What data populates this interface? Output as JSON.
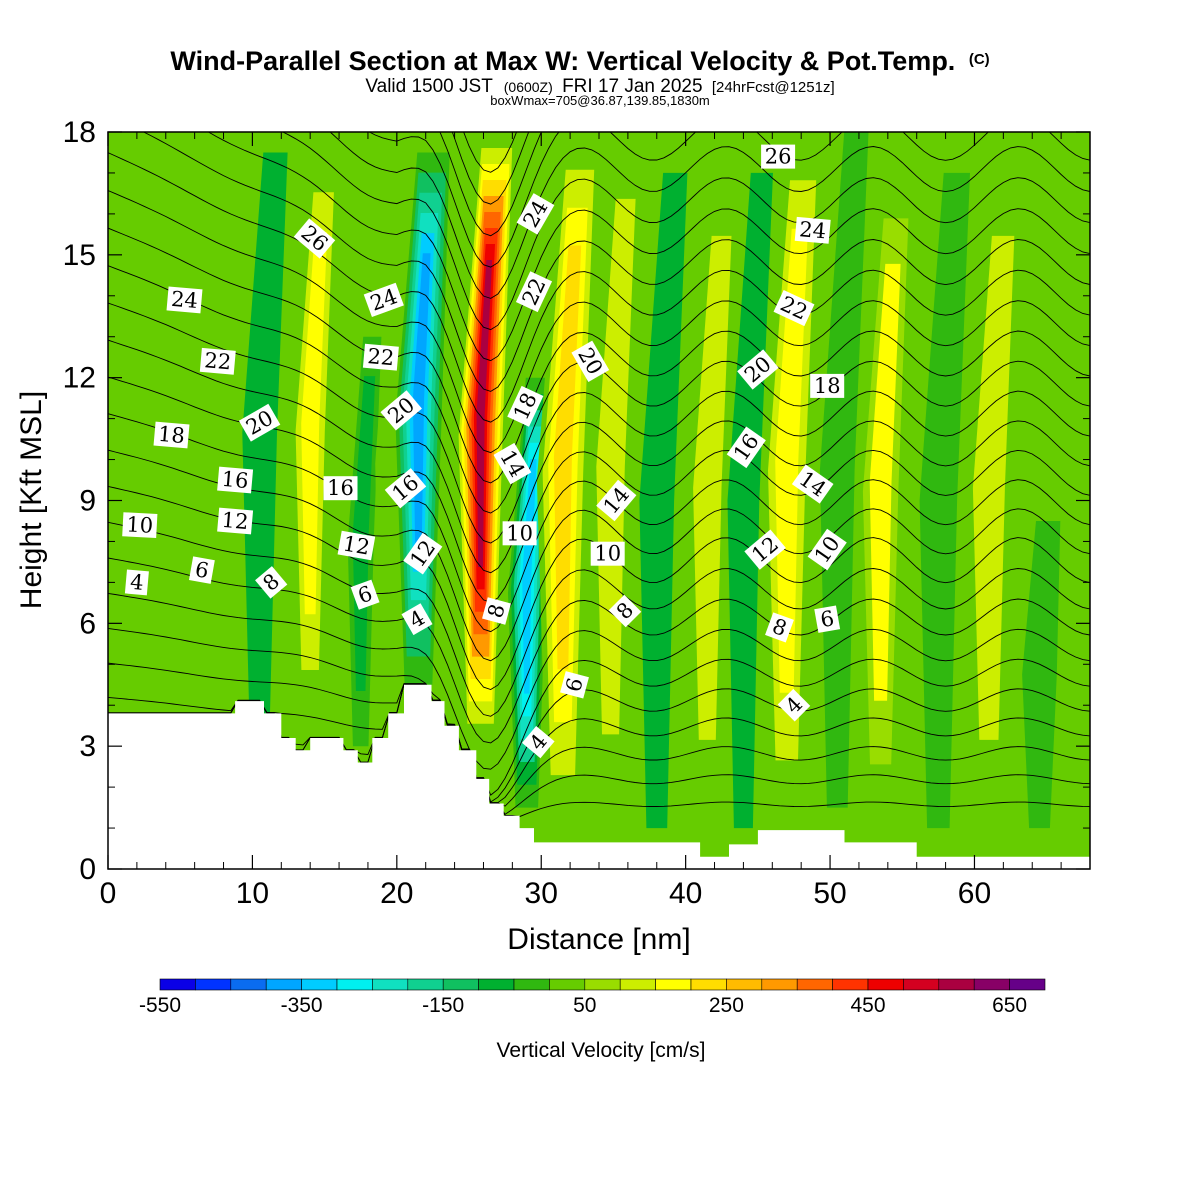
{
  "chart_data": {
    "type": "heatmap",
    "title": "Wind-Parallel Section at Max W: Vertical Velocity & Pot.Temp.",
    "title_mark": "(C)",
    "subtitle_main": "Valid 1500 JST",
    "subtitle_z": "(0600Z)",
    "subtitle_date": "FRI 17 Jan 2025",
    "subtitle_fcst": "[24hrFcst@1251z]",
    "subtitle2": "boxWmax=705@36.87,139.85,1830m",
    "xlabel": "Distance [nm]",
    "ylabel": "Height [Kft MSL]",
    "xlim": [
      0,
      68
    ],
    "ylim": [
      0,
      18
    ],
    "x_ticks": [
      "0",
      "10",
      "20",
      "30",
      "40",
      "50",
      "60"
    ],
    "y_ticks": [
      "0",
      "3",
      "6",
      "9",
      "12",
      "15",
      "18"
    ],
    "colorbar": {
      "label": "Vertical Velocity [cm/s]",
      "tick_labels": [
        "-550",
        "-350",
        "-150",
        "50",
        "250",
        "450",
        "650"
      ],
      "colors": [
        "#0a00e6",
        "#0033ff",
        "#0a6cf0",
        "#00a6ff",
        "#00ccff",
        "#00f0f0",
        "#10e0c0",
        "#10d090",
        "#10c060",
        "#00b030",
        "#30b810",
        "#66cc00",
        "#99dd00",
        "#ccee00",
        "#ffff00",
        "#ffdd00",
        "#ffbb00",
        "#ff9900",
        "#ff6600",
        "#ff3300",
        "#ee0000",
        "#d40020",
        "#aa0040",
        "#880066",
        "#660088"
      ]
    },
    "colors": {
      "background_field": "#66cc00"
    },
    "terrain": [
      [
        0,
        3.8
      ],
      [
        8.8,
        3.8
      ],
      [
        8.8,
        4.1
      ],
      [
        10.8,
        4.1
      ],
      [
        10.8,
        3.8
      ],
      [
        12,
        3.8
      ],
      [
        12,
        3.2
      ],
      [
        13,
        3.2
      ],
      [
        13,
        2.9
      ],
      [
        14,
        2.9
      ],
      [
        14,
        3.2
      ],
      [
        16.3,
        3.2
      ],
      [
        16.3,
        2.9
      ],
      [
        17.3,
        2.9
      ],
      [
        17.3,
        2.6
      ],
      [
        18.3,
        2.6
      ],
      [
        18.3,
        3.2
      ],
      [
        19.4,
        3.2
      ],
      [
        19.4,
        3.8
      ],
      [
        20.5,
        3.8
      ],
      [
        20.5,
        4.5
      ],
      [
        22.4,
        4.5
      ],
      [
        22.4,
        4.1
      ],
      [
        23.3,
        4.1
      ],
      [
        23.3,
        3.5
      ],
      [
        24.3,
        3.5
      ],
      [
        24.3,
        2.9
      ],
      [
        25.5,
        2.9
      ],
      [
        25.5,
        2.2
      ],
      [
        26.4,
        2.2
      ],
      [
        26.4,
        1.6
      ],
      [
        27.4,
        1.6
      ],
      [
        27.4,
        1.3
      ],
      [
        28.5,
        1.3
      ],
      [
        28.5,
        1.0
      ],
      [
        29.5,
        1.0
      ],
      [
        29.5,
        0.65
      ],
      [
        41,
        0.65
      ],
      [
        41,
        0.3
      ],
      [
        43,
        0.3
      ],
      [
        43,
        0.6
      ],
      [
        45,
        0.6
      ],
      [
        45,
        0.95
      ],
      [
        51,
        0.95
      ],
      [
        51,
        0.65
      ],
      [
        56,
        0.65
      ],
      [
        56,
        0.3
      ],
      [
        68,
        0.3
      ]
    ],
    "w_features": [
      {
        "x": 10.5,
        "z0": 3.8,
        "z1": 17.5,
        "w": -60,
        "width": 1.2
      },
      {
        "x": 14.0,
        "z0": 3.5,
        "z1": 17.5,
        "w": 180,
        "width": 1.4
      },
      {
        "x": 17.5,
        "z0": 3.0,
        "z1": 13.0,
        "w": -90,
        "width": 0.9
      },
      {
        "x": 19.5,
        "z0": 3.8,
        "z1": 16.0,
        "w": 40,
        "width": 1.0
      },
      {
        "x": 21.5,
        "z0": 4.5,
        "z1": 17.5,
        "w": -380,
        "width": 1.6
      },
      {
        "x": 25.8,
        "z0": 3.0,
        "z1": 18.0,
        "w": 560,
        "width": 1.7
      },
      {
        "x": 29.0,
        "z0": 1.5,
        "z1": 12.0,
        "w": -330,
        "width": 1.3
      },
      {
        "x": 31.5,
        "z0": 1.0,
        "z1": 18.0,
        "w": 230,
        "width": 1.8
      },
      {
        "x": 34.8,
        "z0": 1.0,
        "z1": 18.0,
        "w": 140,
        "width": 1.6
      },
      {
        "x": 38.0,
        "z0": 1.0,
        "z1": 17.0,
        "w": -60,
        "width": 1.2
      },
      {
        "x": 41.5,
        "z0": 1.0,
        "z1": 17.0,
        "w": 140,
        "width": 1.6
      },
      {
        "x": 44.0,
        "z0": 1.0,
        "z1": 17.0,
        "w": -70,
        "width": 1.1
      },
      {
        "x": 47.0,
        "z0": 1.0,
        "z1": 18.0,
        "w": 180,
        "width": 1.8
      },
      {
        "x": 50.5,
        "z0": 1.5,
        "z1": 18.0,
        "w": -50,
        "width": 1.2
      },
      {
        "x": 53.5,
        "z0": 1.0,
        "z1": 17.0,
        "w": 150,
        "width": 1.7
      },
      {
        "x": 57.5,
        "z0": 1.0,
        "z1": 17.0,
        "w": -50,
        "width": 1.3
      },
      {
        "x": 61.0,
        "z0": 1.0,
        "z1": 17.0,
        "w": 110,
        "width": 1.8
      },
      {
        "x": 64.5,
        "z0": 1.0,
        "z1": 8.5,
        "w": -40,
        "width": 1.2
      }
    ],
    "theta_contours": {
      "levels": [
        1,
        2,
        3,
        4,
        5,
        6,
        7,
        8,
        9,
        10,
        11,
        12,
        13,
        14,
        15,
        16,
        17,
        18,
        19,
        20,
        21,
        22,
        23,
        24,
        25,
        26,
        27
      ]
    },
    "contour_labels": [
      {
        "text": "4",
        "x": 2.0,
        "y": 7.0,
        "angle": -5
      },
      {
        "text": "6",
        "x": 6.5,
        "y": 7.3,
        "angle": -10
      },
      {
        "text": "10",
        "x": 2.2,
        "y": 8.4,
        "angle": -3
      },
      {
        "text": "12",
        "x": 8.8,
        "y": 8.5,
        "angle": -5
      },
      {
        "text": "16",
        "x": 8.8,
        "y": 9.5,
        "angle": -5
      },
      {
        "text": "18",
        "x": 4.4,
        "y": 10.6,
        "angle": -5
      },
      {
        "text": "22",
        "x": 7.6,
        "y": 12.4,
        "angle": -5
      },
      {
        "text": "24",
        "x": 5.3,
        "y": 13.9,
        "angle": -5
      },
      {
        "text": "20",
        "x": 10.5,
        "y": 10.9,
        "angle": 30
      },
      {
        "text": "8",
        "x": 11.3,
        "y": 7.0,
        "angle": 40
      },
      {
        "text": "26",
        "x": 14.3,
        "y": 15.4,
        "angle": -40
      },
      {
        "text": "16",
        "x": 16.1,
        "y": 9.3,
        "angle": 0
      },
      {
        "text": "12",
        "x": 17.2,
        "y": 7.9,
        "angle": -10
      },
      {
        "text": "6",
        "x": 17.8,
        "y": 6.7,
        "angle": 20
      },
      {
        "text": "24",
        "x": 19.1,
        "y": 13.9,
        "angle": 20
      },
      {
        "text": "22",
        "x": 18.9,
        "y": 12.5,
        "angle": -5
      },
      {
        "text": "20",
        "x": 20.3,
        "y": 11.2,
        "angle": 40
      },
      {
        "text": "16",
        "x": 20.6,
        "y": 9.3,
        "angle": 40
      },
      {
        "text": "12",
        "x": 21.8,
        "y": 7.7,
        "angle": 55
      },
      {
        "text": "4",
        "x": 21.4,
        "y": 6.1,
        "angle": 30
      },
      {
        "text": "24",
        "x": 29.6,
        "y": 16.0,
        "angle": 60
      },
      {
        "text": "22",
        "x": 29.5,
        "y": 14.1,
        "angle": 65
      },
      {
        "text": "18",
        "x": 28.9,
        "y": 11.3,
        "angle": 65
      },
      {
        "text": "14",
        "x": 28.0,
        "y": 9.9,
        "angle": -60
      },
      {
        "text": "10",
        "x": 28.5,
        "y": 8.2,
        "angle": 0
      },
      {
        "text": "8",
        "x": 26.9,
        "y": 6.3,
        "angle": 75
      },
      {
        "text": "20",
        "x": 33.4,
        "y": 12.4,
        "angle": -60
      },
      {
        "text": "14",
        "x": 35.2,
        "y": 9.0,
        "angle": 50
      },
      {
        "text": "10",
        "x": 34.6,
        "y": 7.7,
        "angle": 0
      },
      {
        "text": "8",
        "x": 35.8,
        "y": 6.3,
        "angle": 45
      },
      {
        "text": "6",
        "x": 32.3,
        "y": 4.5,
        "angle": 75
      },
      {
        "text": "4",
        "x": 29.8,
        "y": 3.1,
        "angle": 50
      },
      {
        "text": "26",
        "x": 46.4,
        "y": 17.4,
        "angle": 0
      },
      {
        "text": "24",
        "x": 48.8,
        "y": 15.6,
        "angle": -5
      },
      {
        "text": "22",
        "x": 47.5,
        "y": 13.7,
        "angle": -25
      },
      {
        "text": "20",
        "x": 45.0,
        "y": 12.2,
        "angle": 40
      },
      {
        "text": "18",
        "x": 49.8,
        "y": 11.8,
        "angle": 0
      },
      {
        "text": "16",
        "x": 44.2,
        "y": 10.3,
        "angle": 55
      },
      {
        "text": "14",
        "x": 48.8,
        "y": 9.4,
        "angle": -35
      },
      {
        "text": "12",
        "x": 45.5,
        "y": 7.8,
        "angle": 40
      },
      {
        "text": "10",
        "x": 49.8,
        "y": 7.8,
        "angle": 55
      },
      {
        "text": "8",
        "x": 46.5,
        "y": 5.9,
        "angle": -20
      },
      {
        "text": "6",
        "x": 49.8,
        "y": 6.1,
        "angle": 10
      },
      {
        "text": "4",
        "x": 47.5,
        "y": 4.0,
        "angle": 45
      }
    ]
  }
}
